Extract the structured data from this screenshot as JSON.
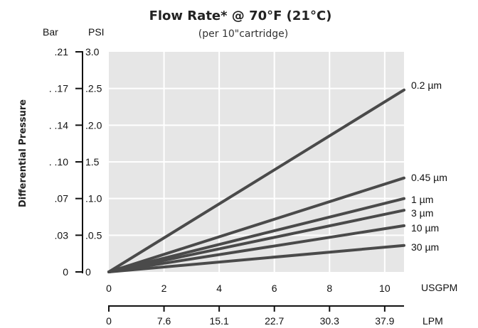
{
  "chart_data": {
    "type": "line",
    "title": "Flow Rate* @ 70°F (21°C)",
    "subtitle": "(per 10\"cartridge)",
    "ylabel": "Differential Pressure",
    "y_units": {
      "bar": "Bar",
      "psi": "PSI"
    },
    "x_units": {
      "usgpm": "USGPM",
      "lpm": "LPM"
    },
    "ylim": [
      0,
      3.0
    ],
    "xlim": [
      0,
      10.7
    ],
    "psi_ticks": [
      "0",
      ".0.5",
      ".1.0",
      "1.5",
      ".2.0",
      ".2.5",
      "3.0"
    ],
    "psi_tick_values": [
      0,
      0.5,
      1.0,
      1.5,
      2.0,
      2.5,
      3.0
    ],
    "bar_ticks": [
      "0",
      ".03",
      ".07",
      ". .10",
      ". .14",
      ". .17",
      ".21"
    ],
    "usgpm_ticks": [
      "0",
      "2",
      "4",
      "6",
      "8",
      "10"
    ],
    "usgpm_tick_values": [
      0,
      2,
      4,
      6,
      8,
      10
    ],
    "lpm_ticks": [
      "0",
      "7.6",
      "15.1",
      "22.7",
      "30.3",
      "37.9"
    ],
    "grid": true,
    "background": "#e6e6e6",
    "line_color": "#4a4a4a",
    "series": [
      {
        "name": "0.2 µm",
        "x": [
          0,
          10.7
        ],
        "y": [
          0,
          2.48
        ]
      },
      {
        "name": "0.45 µm",
        "x": [
          0,
          10.7
        ],
        "y": [
          0,
          1.28
        ]
      },
      {
        "name": "1 µm",
        "x": [
          0,
          10.7
        ],
        "y": [
          0,
          1.0
        ]
      },
      {
        "name": "3 µm",
        "x": [
          0,
          10.7
        ],
        "y": [
          0,
          0.84
        ]
      },
      {
        "name": "10 µm",
        "x": [
          0,
          10.7
        ],
        "y": [
          0,
          0.63
        ]
      },
      {
        "name": "30 µm",
        "x": [
          0,
          10.7
        ],
        "y": [
          0,
          0.36
        ]
      }
    ]
  }
}
